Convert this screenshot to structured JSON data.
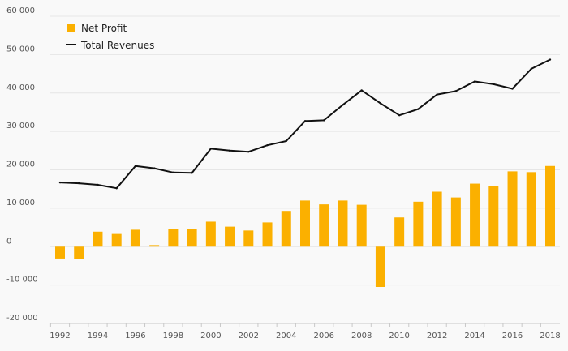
{
  "chart_data": {
    "type": "bar",
    "x": [
      1992,
      1993,
      1994,
      1995,
      1996,
      1997,
      1998,
      1999,
      2000,
      2001,
      2002,
      2003,
      2004,
      2005,
      2006,
      2007,
      2008,
      2009,
      2010,
      2011,
      2012,
      2013,
      2014,
      2015,
      2016,
      2017,
      2018
    ],
    "x_tick_labels": [
      "1992",
      "1994",
      "1996",
      "1998",
      "2000",
      "2002",
      "2004",
      "2006",
      "2008",
      "2010",
      "2012",
      "2014",
      "2016",
      "2018"
    ],
    "y_tick_labels": [
      "60 000",
      "50 000",
      "40 000",
      "30 000",
      "20 000",
      "10 000",
      "0",
      "-10 000",
      "-20 000"
    ],
    "ylim": [
      -20000,
      60000
    ],
    "yticks": [
      60000,
      50000,
      40000,
      30000,
      20000,
      10000,
      0,
      -10000,
      -20000
    ],
    "grid": true,
    "legend_position": "top-left",
    "series": [
      {
        "name": "Net Profit",
        "type": "bar",
        "color": "#fbb000",
        "values": [
          -3100,
          -3300,
          3900,
          3300,
          4400,
          400,
          4600,
          4600,
          6500,
          5200,
          4200,
          6300,
          9300,
          12000,
          11000,
          12000,
          10900,
          -10500,
          7600,
          11700,
          14300,
          12800,
          16400,
          15800,
          19600,
          19400,
          21000
        ]
      },
      {
        "name": "Total Revenues",
        "type": "line",
        "color": "#111111",
        "values": [
          16700,
          16500,
          16100,
          15200,
          21000,
          20400,
          19300,
          19200,
          25500,
          25000,
          24700,
          26400,
          27500,
          32700,
          32900,
          36900,
          40700,
          37300,
          34200,
          35800,
          39600,
          40500,
          43000,
          42300,
          41100,
          46300,
          48700
        ]
      }
    ]
  }
}
